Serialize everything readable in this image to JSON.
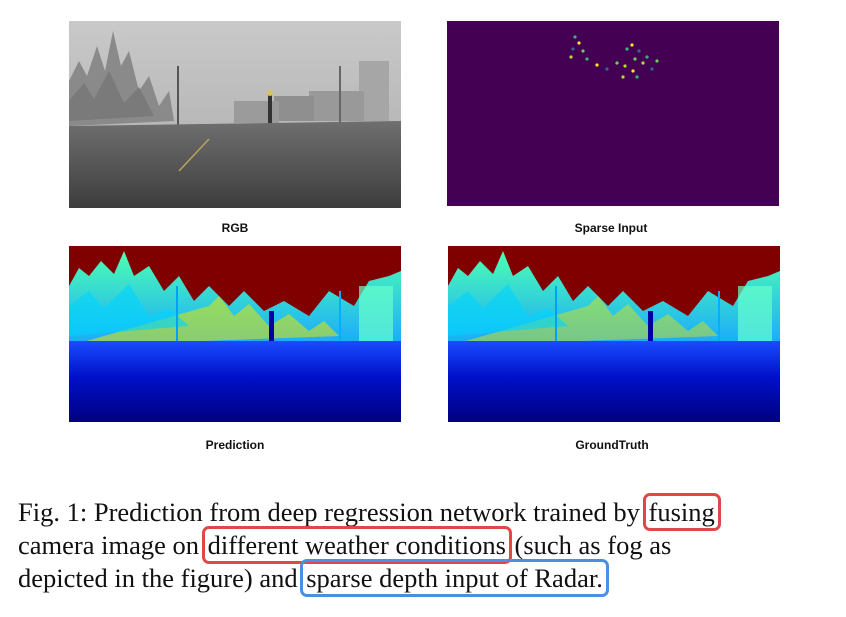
{
  "figure": {
    "panels": [
      {
        "id": "rgb",
        "label": "RGB"
      },
      {
        "id": "sparse",
        "label": "Sparse Input"
      },
      {
        "id": "prediction",
        "label": "Prediction"
      },
      {
        "id": "groundtruth",
        "label": "GroundTruth"
      }
    ],
    "colors": {
      "depth_far": "#800000",
      "depth_near": "#00007f",
      "sparse_bg": "#440154"
    },
    "caption": {
      "line1_pre": "Fig. 1: Prediction from deep regression network trained by",
      "hl1": "fusing",
      "line2_pre": "camera image on",
      "hl2": "different weather conditions",
      "line2_post": "(such as fog as",
      "line3_pre": "depicted in the figure) and",
      "hl3": "sparse depth input of Radar."
    }
  }
}
